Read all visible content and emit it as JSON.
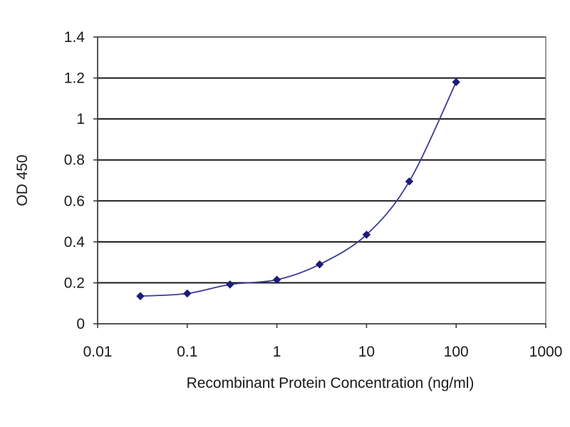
{
  "chart_data": {
    "type": "scatter",
    "x_scale": "log",
    "xlabel": "Recombinant Protein Concentration (ng/ml)",
    "ylabel": "OD 450",
    "xlim": [
      0.01,
      1000
    ],
    "ylim": [
      0,
      1.4
    ],
    "x_ticks": [
      "0.01",
      "0.1",
      "1",
      "10",
      "100",
      "1000"
    ],
    "y_ticks": [
      "0",
      "0.2",
      "0.4",
      "0.6",
      "0.8",
      "1",
      "1.2",
      "1.4"
    ],
    "x_tick_values": [
      0.01,
      0.1,
      1,
      10,
      100,
      1000
    ],
    "y_tick_values": [
      0,
      0.2,
      0.4,
      0.6,
      0.8,
      1,
      1.2,
      1.4
    ],
    "grid": "horizontal",
    "legend": "none",
    "series": [
      {
        "x": [
          0.03,
          0.1,
          0.3,
          1,
          3,
          10,
          30,
          100
        ],
        "y": [
          0.135,
          0.148,
          0.192,
          0.215,
          0.29,
          0.435,
          0.695,
          1.18
        ],
        "color": "#1c1c7a",
        "marker": "diamond",
        "smooth_line": true
      }
    ]
  }
}
